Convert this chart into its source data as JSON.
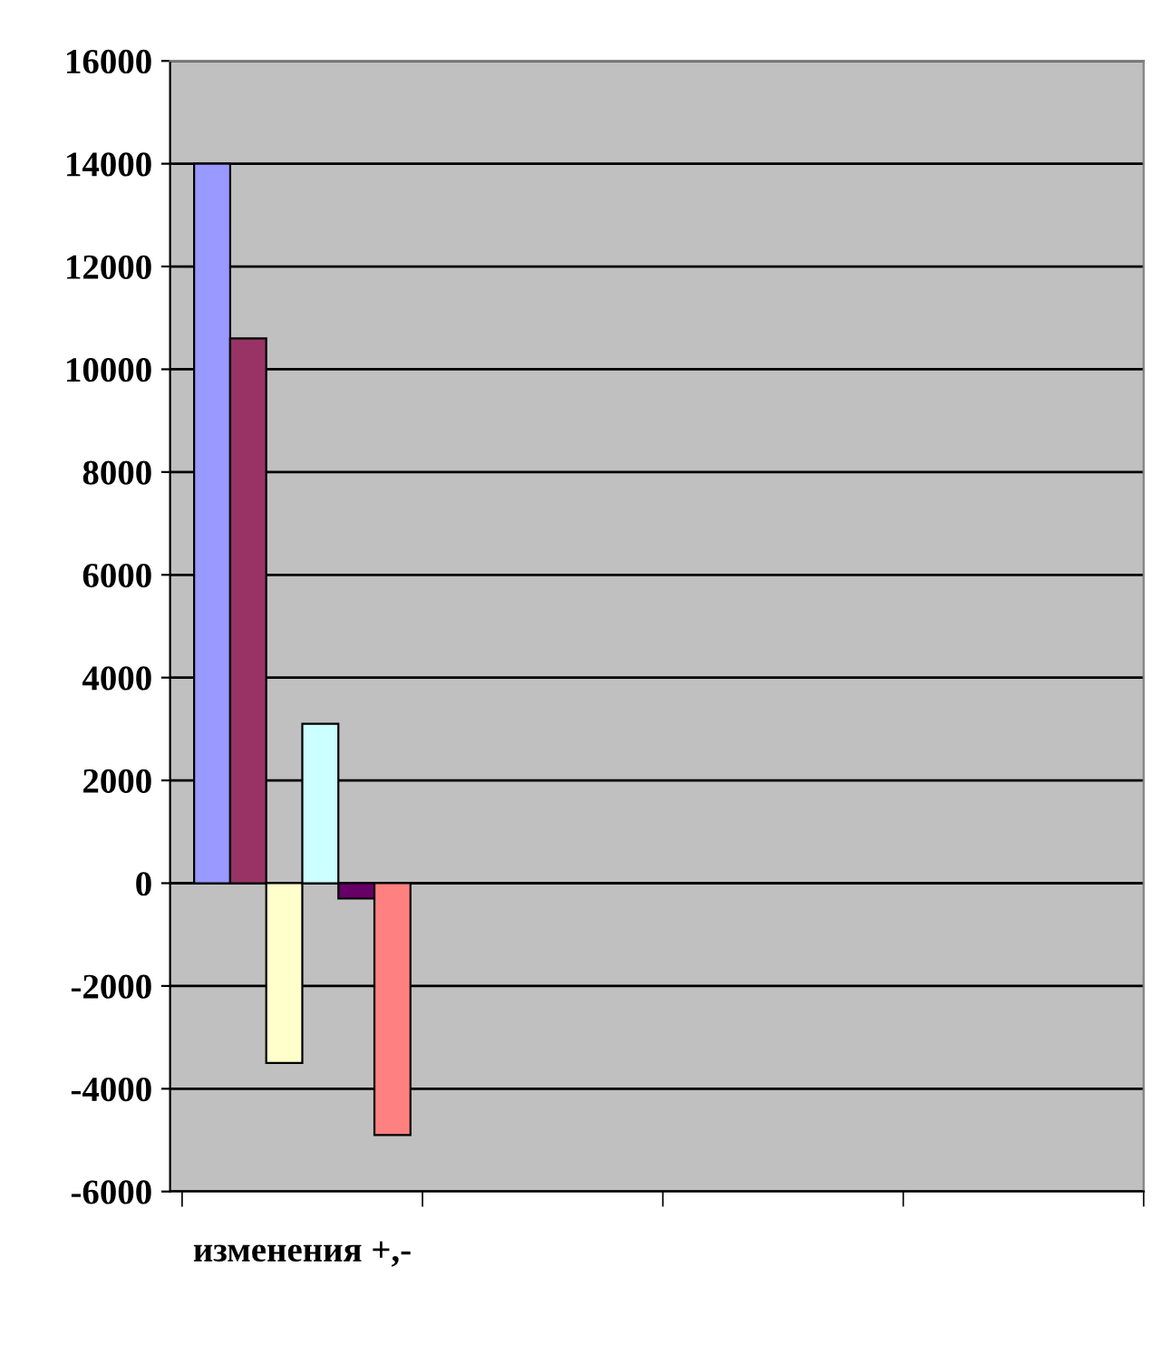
{
  "chart_data": {
    "type": "bar",
    "categories": [
      "изменения +,-",
      null,
      null,
      null
    ],
    "series": [
      {
        "color": "#9999ff",
        "values": [
          14000,
          null,
          null,
          null
        ]
      },
      {
        "color": "#993366",
        "values": [
          10600,
          null,
          null,
          null
        ]
      },
      {
        "color": "#ffffcc",
        "values": [
          -3500,
          null,
          null,
          null
        ]
      },
      {
        "color": "#ccffff",
        "values": [
          3100,
          null,
          null,
          null
        ]
      },
      {
        "color": "#660066",
        "values": [
          -300,
          null,
          null,
          null
        ]
      },
      {
        "color": "#ff8080",
        "values": [
          -4900,
          null,
          null,
          null
        ]
      }
    ],
    "ylim": [
      -6000,
      16000
    ],
    "yticks": [
      -6000,
      -4000,
      -2000,
      0,
      2000,
      4000,
      6000,
      8000,
      10000,
      12000,
      14000,
      16000
    ],
    "grid": "y",
    "legend": false
  }
}
